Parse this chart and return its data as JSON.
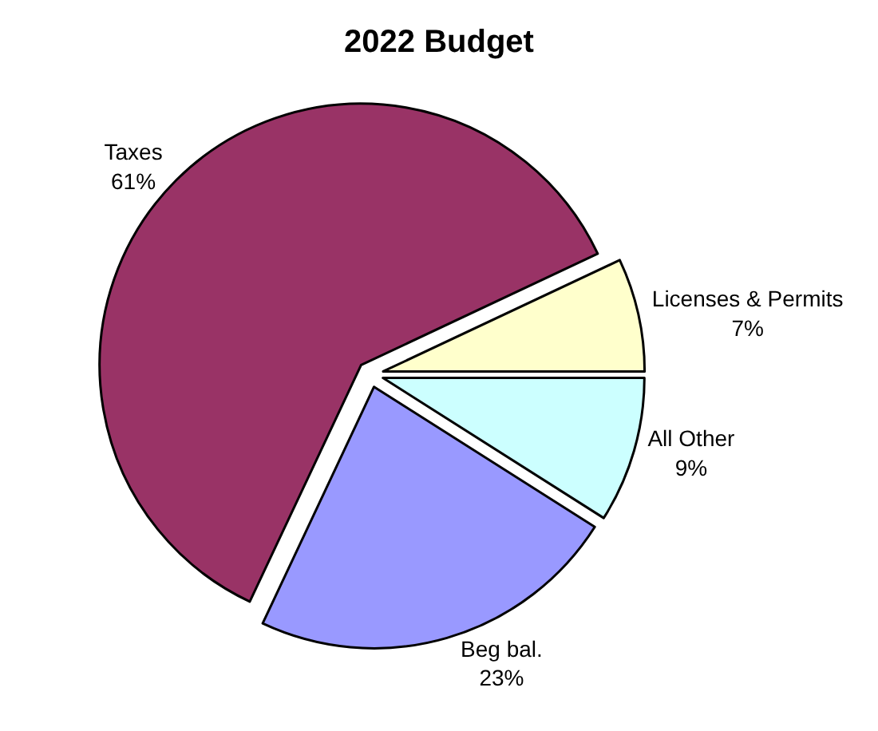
{
  "chart_data": {
    "type": "pie",
    "title": "2022 Budget",
    "categories": [
      "All Other",
      "Licenses & Permits",
      "Taxes",
      "Beg bal."
    ],
    "values": [
      9,
      7,
      61,
      23
    ],
    "value_labels": [
      "9%",
      "7%",
      "61%",
      "23%"
    ],
    "colors": [
      "#ccffff",
      "#ffffcc",
      "#993366",
      "#9999ff"
    ],
    "legend": false
  }
}
